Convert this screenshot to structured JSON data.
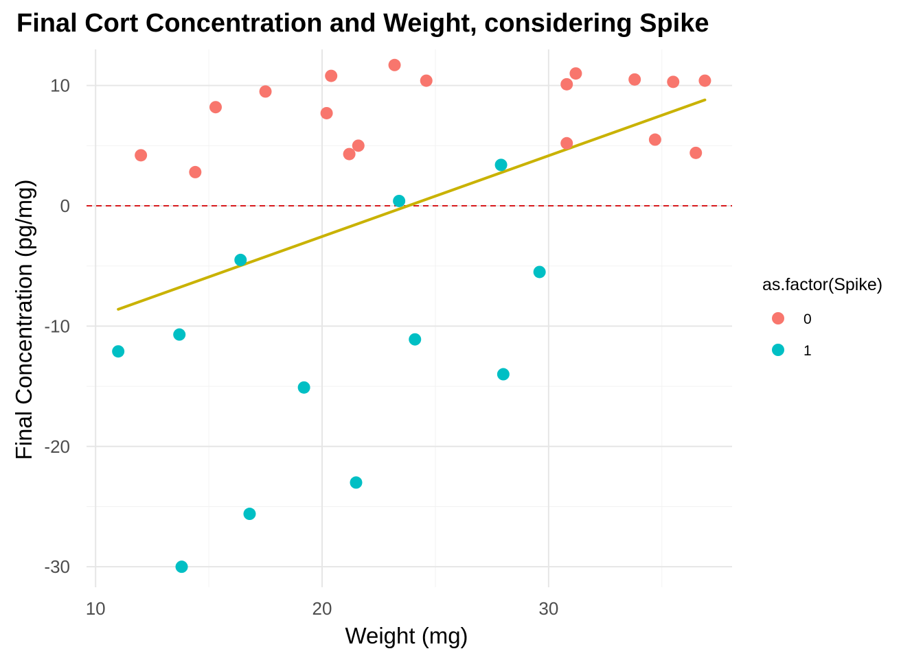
{
  "chart_data": {
    "type": "scatter",
    "title": "Final Cort Concentration and Weight, considering Spike",
    "xlabel": "Weight (mg)",
    "ylabel": "Final Concentration (pg/mg)",
    "xlim": [
      9.6,
      38.1
    ],
    "ylim": [
      -31.7,
      13.0
    ],
    "x_ticks": [
      10,
      20,
      30
    ],
    "x_tick_labels": [
      "10",
      "20",
      "30"
    ],
    "y_ticks": [
      -30,
      -20,
      -10,
      0,
      10
    ],
    "y_tick_labels": [
      "-30",
      "-20",
      "-10",
      "0",
      "10"
    ],
    "x_minor_ticks": [
      15,
      25,
      35
    ],
    "y_minor_ticks": [
      -25,
      -15,
      -5,
      5
    ],
    "grid": true,
    "legend": {
      "title": "as.factor(Spike)",
      "placement": "right",
      "entries": [
        {
          "label": "0",
          "color": "#F8766D"
        },
        {
          "label": "1",
          "color": "#00BFC4"
        }
      ]
    },
    "reference_line": {
      "y": 0,
      "style": "dashed",
      "color": "#D7191C"
    },
    "fit_line": {
      "color": "#C9B200",
      "x": [
        11.0,
        36.9
      ],
      "y": [
        -8.6,
        8.8
      ]
    },
    "series": [
      {
        "name": "0",
        "color": "#F8766D",
        "x": [
          12.0,
          14.4,
          15.3,
          17.5,
          20.2,
          20.4,
          21.2,
          21.6,
          23.2,
          24.6,
          30.8,
          30.8,
          31.2,
          33.8,
          34.7,
          35.5,
          36.5,
          36.9
        ],
        "y": [
          4.2,
          2.8,
          8.2,
          9.5,
          7.7,
          10.8,
          4.3,
          5.0,
          11.7,
          10.4,
          10.1,
          5.2,
          11.0,
          10.5,
          5.5,
          10.3,
          4.4,
          10.4
        ]
      },
      {
        "name": "1",
        "color": "#00BFC4",
        "x": [
          11.0,
          13.7,
          13.8,
          16.4,
          16.8,
          19.2,
          21.5,
          23.4,
          24.1,
          27.9,
          28.0,
          29.6
        ],
        "y": [
          -12.1,
          -10.7,
          -30.0,
          -4.5,
          -25.6,
          -15.1,
          -23.0,
          0.4,
          -11.1,
          3.4,
          -14.0,
          -5.5
        ]
      }
    ]
  }
}
